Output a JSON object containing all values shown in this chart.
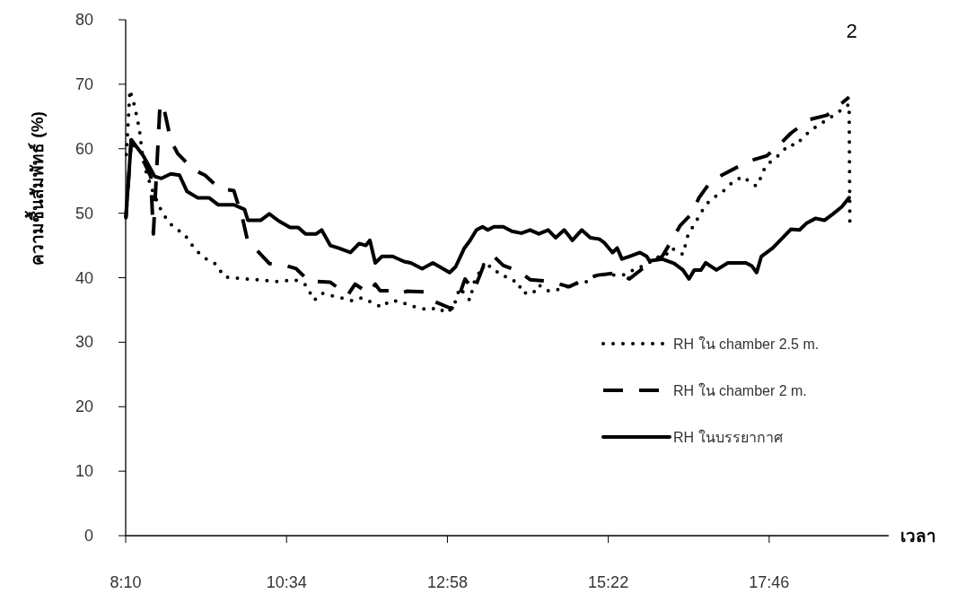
{
  "chart_data": {
    "type": "line",
    "ylabel": "ความชื้นสัมพัทธ์ (%)",
    "xlabel": "เวลา",
    "annotations": [
      "2"
    ],
    "xlim": [
      8.1667,
      19.55
    ],
    "ylim": [
      0,
      80
    ],
    "xticks": [
      {
        "value": 8.1667,
        "label": "8:10"
      },
      {
        "value": 10.5667,
        "label": "10:34"
      },
      {
        "value": 12.9667,
        "label": "12:58"
      },
      {
        "value": 15.3667,
        "label": "15:22"
      },
      {
        "value": 17.7667,
        "label": "17:46"
      }
    ],
    "yticks": [
      0,
      10,
      20,
      30,
      40,
      50,
      60,
      70,
      80
    ],
    "grid": false,
    "legend": "right",
    "series": [
      {
        "name": "RH ใน chamber 2.5 m.",
        "color": "#000000",
        "line_style": "dotted",
        "x": [
          8.17,
          8.23,
          8.3,
          8.37,
          8.41,
          8.46,
          8.57,
          8.68,
          8.77,
          8.88,
          9.04,
          9.13,
          9.24,
          9.37,
          9.51,
          9.64,
          9.98,
          10.45,
          10.69,
          10.85,
          10.98,
          11.09,
          11.28,
          11.41,
          11.56,
          11.69,
          11.85,
          11.99,
          12.1,
          12.26,
          12.39,
          12.52,
          12.69,
          12.82,
          12.95,
          13.06,
          13.15,
          13.3,
          13.37,
          13.53,
          13.66,
          13.77,
          13.87,
          14.03,
          14.07,
          14.24,
          14.33,
          14.44,
          14.54,
          14.9,
          15.05,
          15.18,
          15.34,
          15.5,
          15.64,
          15.78,
          15.92,
          16.1,
          16.21,
          16.31,
          16.48,
          16.55,
          16.61,
          16.69,
          16.78,
          16.86,
          16.98,
          17.08,
          17.24,
          17.38,
          17.49,
          17.58,
          17.65,
          17.71,
          17.86,
          17.95,
          18.05,
          18.18,
          18.26,
          18.42,
          18.63,
          18.83,
          18.96,
          18.97
        ],
        "values": [
          57.8,
          69.1,
          66.6,
          63.1,
          59.6,
          56.8,
          53.4,
          50.8,
          49.2,
          47.8,
          46.8,
          45.4,
          44.0,
          42.9,
          42.1,
          40.1,
          39.8,
          39.4,
          39.7,
          38.9,
          36.5,
          37.6,
          37.1,
          36.8,
          36.4,
          36.9,
          36.1,
          35.4,
          36.4,
          36.4,
          35.7,
          35.4,
          35.0,
          35.4,
          34.5,
          35.5,
          38.4,
          36.5,
          39.4,
          42.5,
          41.0,
          40.8,
          39.8,
          39.3,
          37.7,
          37.5,
          38.9,
          38.0,
          37.9,
          39.1,
          39.4,
          40.4,
          40.5,
          40.4,
          40.5,
          41.5,
          41.9,
          43.2,
          43.3,
          44.6,
          43.6,
          46.4,
          47.6,
          49.0,
          50.6,
          51.7,
          52.7,
          53.4,
          55.0,
          55.7,
          54.7,
          54.2,
          55.7,
          57.3,
          58.6,
          59.3,
          60.6,
          60.6,
          61.7,
          63.1,
          64.5,
          65.9,
          66.9,
          48.8
        ]
      },
      {
        "name": "RH ใน chamber 2 m.",
        "color": "#000000",
        "line_style": "dashed",
        "x": [
          8.17,
          8.25,
          8.43,
          8.54,
          8.58,
          8.68,
          8.73,
          8.84,
          8.94,
          9.17,
          9.35,
          9.57,
          9.78,
          9.91,
          9.98,
          10.11,
          10.31,
          10.55,
          10.71,
          10.92,
          11.02,
          11.22,
          11.48,
          11.59,
          11.79,
          11.89,
          11.96,
          12.19,
          12.28,
          12.36,
          12.62,
          12.73,
          13.03,
          13.13,
          13.23,
          13.36,
          13.53,
          13.66,
          13.8,
          14.03,
          14.2,
          14.51,
          14.78,
          15.03,
          15.21,
          15.54,
          15.68,
          15.94,
          16.17,
          16.31,
          16.44,
          16.61,
          16.72,
          16.88,
          17.06,
          17.32,
          17.51,
          17.73,
          17.89,
          18.09,
          18.36,
          18.63,
          18.96
        ],
        "values": [
          49.3,
          61.3,
          58.2,
          55.7,
          46.8,
          67.0,
          66.6,
          61.3,
          59.3,
          56.8,
          55.9,
          53.8,
          53.5,
          49.2,
          46.0,
          44.4,
          42.2,
          41.9,
          41.4,
          39.3,
          39.4,
          39.3,
          37.3,
          39.0,
          37.6,
          39.0,
          38.0,
          38.0,
          37.6,
          37.9,
          37.8,
          36.5,
          35.2,
          36.9,
          39.8,
          38.0,
          42.5,
          43.3,
          41.9,
          41.0,
          39.7,
          39.4,
          38.6,
          39.8,
          40.4,
          40.8,
          39.8,
          41.9,
          43.3,
          45.7,
          48.1,
          49.9,
          52.4,
          54.7,
          55.9,
          57.3,
          58.2,
          58.9,
          60.3,
          62.4,
          64.5,
          65.2,
          68.0
        ]
      },
      {
        "name": "RH ในบรรยากาศ",
        "color": "#000000",
        "line_style": "solid",
        "x": [
          8.17,
          8.25,
          8.43,
          8.6,
          8.7,
          8.84,
          8.97,
          9.08,
          9.24,
          9.41,
          9.55,
          9.78,
          9.94,
          9.99,
          10.18,
          10.31,
          10.45,
          10.62,
          10.74,
          10.85,
          11.01,
          11.09,
          11.22,
          11.34,
          11.52,
          11.65,
          11.75,
          11.81,
          11.89,
          11.99,
          12.15,
          12.32,
          12.42,
          12.59,
          12.75,
          13.0,
          13.09,
          13.22,
          13.3,
          13.4,
          13.49,
          13.57,
          13.66,
          13.8,
          13.93,
          14.07,
          14.2,
          14.33,
          14.47,
          14.58,
          14.71,
          14.83,
          14.97,
          15.1,
          15.23,
          15.31,
          15.43,
          15.5,
          15.57,
          15.68,
          15.84,
          15.94,
          15.98,
          16.17,
          16.35,
          16.48,
          16.57,
          16.65,
          16.75,
          16.82,
          16.98,
          17.15,
          17.42,
          17.51,
          17.58,
          17.65,
          17.82,
          17.95,
          18.09,
          18.22,
          18.33,
          18.46,
          18.59,
          18.72,
          18.85,
          18.96
        ],
        "values": [
          49.3,
          61.4,
          58.9,
          55.7,
          55.4,
          56.1,
          55.9,
          53.4,
          52.4,
          52.4,
          51.3,
          51.3,
          50.6,
          48.9,
          48.9,
          49.9,
          48.8,
          47.8,
          47.8,
          46.8,
          46.8,
          47.4,
          45.0,
          44.6,
          43.9,
          45.3,
          45.0,
          45.8,
          42.3,
          43.3,
          43.3,
          42.5,
          42.3,
          41.4,
          42.3,
          40.8,
          41.7,
          44.6,
          45.7,
          47.4,
          47.9,
          47.4,
          47.9,
          47.9,
          47.2,
          46.9,
          47.4,
          46.8,
          47.4,
          46.2,
          47.4,
          45.8,
          47.4,
          46.2,
          46.0,
          45.4,
          43.9,
          44.6,
          42.9,
          43.3,
          43.9,
          43.3,
          42.6,
          42.9,
          42.2,
          41.2,
          39.8,
          41.2,
          41.2,
          42.3,
          41.2,
          42.3,
          42.3,
          41.8,
          40.8,
          43.3,
          44.6,
          46.0,
          47.5,
          47.4,
          48.5,
          49.2,
          48.9,
          49.9,
          51.0,
          52.4
        ]
      }
    ]
  }
}
